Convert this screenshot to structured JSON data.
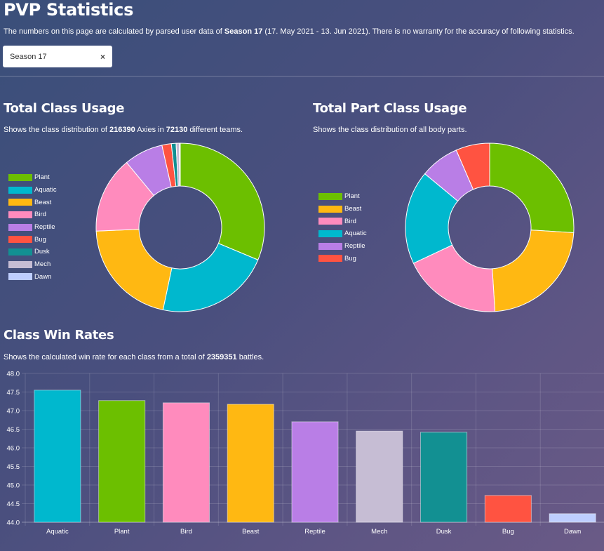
{
  "page": {
    "title": "PVP Statistics",
    "intro_prefix": "The numbers on this page are calculated by parsed user data of ",
    "season_bold": "Season 17",
    "intro_suffix": " (17. May 2021 - 13. Jun 2021). There is no warranty for the accuracy of following statistics."
  },
  "season_select": {
    "value": "Season 17",
    "clear_icon": "×"
  },
  "class_usage": {
    "title": "Total Class Usage",
    "desc_prefix": "Shows the class distribution of ",
    "axies": "216390",
    "desc_mid": " Axies in ",
    "teams": "72130",
    "desc_suffix": " different teams."
  },
  "part_usage": {
    "title": "Total Part Class Usage",
    "desc": "Shows the class distribution of all body parts."
  },
  "win_rates": {
    "title": "Class Win Rates",
    "desc_prefix": "Shows the calculated win rate for each class from a total of ",
    "battles": "2359351",
    "desc_suffix": " battles."
  },
  "colors": {
    "Plant": "#6cbf00",
    "Aquatic": "#00b8ce",
    "Beast": "#ffb812",
    "Bird": "#ff8bbd",
    "Reptile": "#b97ee6",
    "Bug": "#ff5341",
    "Dusk": "#129092",
    "Mech": "#c6bdd4",
    "Dawn": "#beceff"
  },
  "chart_data": [
    {
      "type": "pie",
      "variant": "doughnut",
      "title": "Total Class Usage",
      "legend_position": "left",
      "labels": [
        "Plant",
        "Aquatic",
        "Beast",
        "Bird",
        "Reptile",
        "Bug",
        "Dusk",
        "Mech",
        "Dawn"
      ],
      "values": [
        31.3,
        22.0,
        21.0,
        14.7,
        7.5,
        1.8,
        0.9,
        0.6,
        0.2
      ]
    },
    {
      "type": "pie",
      "variant": "doughnut",
      "title": "Total Part Class Usage",
      "legend_position": "left",
      "labels": [
        "Plant",
        "Beast",
        "Bird",
        "Aquatic",
        "Reptile",
        "Bug"
      ],
      "values": [
        26.0,
        23.0,
        19.0,
        18.0,
        7.5,
        6.5
      ]
    },
    {
      "type": "bar",
      "title": "Class Win Rates",
      "categories": [
        "Aquatic",
        "Plant",
        "Bird",
        "Beast",
        "Reptile",
        "Mech",
        "Dusk",
        "Bug",
        "Dawn"
      ],
      "values": [
        47.55,
        47.27,
        47.21,
        47.17,
        46.7,
        46.45,
        46.42,
        44.72,
        44.23
      ],
      "ylim": [
        44.0,
        48.0
      ],
      "yticks": [
        "48.0",
        "47.5",
        "47.0",
        "46.5",
        "46.0",
        "45.5",
        "45.0",
        "44.5",
        "44.0"
      ],
      "grid": true
    }
  ]
}
